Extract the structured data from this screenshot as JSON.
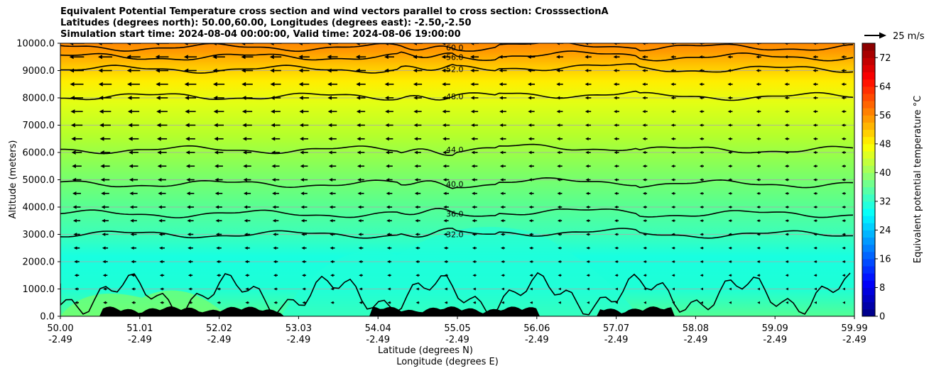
{
  "chart_data": {
    "type": "contour",
    "title_lines": [
      "Equivalent Potential Temperature cross section and wind vectors parallel to cross section: CrosssectionA",
      "Latitudes (degrees north): 50.00,60.00, Longitudes (degrees east): -2.50,-2.50",
      "Simulation start time: 2024-08-04 00:00:00, Valid time: 2024-08-06 19:00:00"
    ],
    "ylabel": "Altitude (meters)",
    "xlabel_lat": "Latitude (degrees N)",
    "xlabel_lon": "Longitude (degrees E)",
    "x_ticks_lat": [
      "50.00",
      "51.01",
      "52.02",
      "53.03",
      "54.04",
      "55.05",
      "56.06",
      "57.07",
      "58.08",
      "59.09",
      "59.99"
    ],
    "x_ticks_lon": [
      "-2.49",
      "-2.49",
      "-2.49",
      "-2.49",
      "-2.49",
      "-2.49",
      "-2.49",
      "-2.49",
      "-2.49",
      "-2.49",
      "-2.49"
    ],
    "y_ticks": [
      "0.0",
      "1000.0",
      "2000.0",
      "3000.0",
      "4000.0",
      "5000.0",
      "6000.0",
      "7000.0",
      "8000.0",
      "9000.0",
      "10000.0"
    ],
    "ylim": [
      0,
      10000
    ],
    "grid": "horizontal",
    "colorbar": {
      "label": "Equivalent potential temperature $^\\circ$C",
      "label_display": "Equivalent potential temperature °C",
      "ticks": [
        "0",
        "8",
        "16",
        "24",
        "32",
        "40",
        "48",
        "56",
        "64",
        "72"
      ],
      "range": [
        0,
        76
      ]
    },
    "wind_key_label": "25 m/s",
    "contour_levels": [
      {
        "value": 32.0,
        "altitude_m": 3000
      },
      {
        "value": 36.0,
        "altitude_m": 3750
      },
      {
        "value": 40.0,
        "altitude_m": 4850
      },
      {
        "value": 44.0,
        "altitude_m": 6100
      },
      {
        "value": 48.0,
        "altitude_m": 8050
      },
      {
        "value": 52.0,
        "altitude_m": 9050
      },
      {
        "value": 56.0,
        "altitude_m": 9500
      },
      {
        "value": 60.0,
        "altitude_m": 9850
      }
    ],
    "contour_label_texts": [
      "32.0",
      "36.0",
      "40.0",
      "44.0",
      "48.0",
      "52.0",
      "56.0",
      "60.0"
    ]
  }
}
